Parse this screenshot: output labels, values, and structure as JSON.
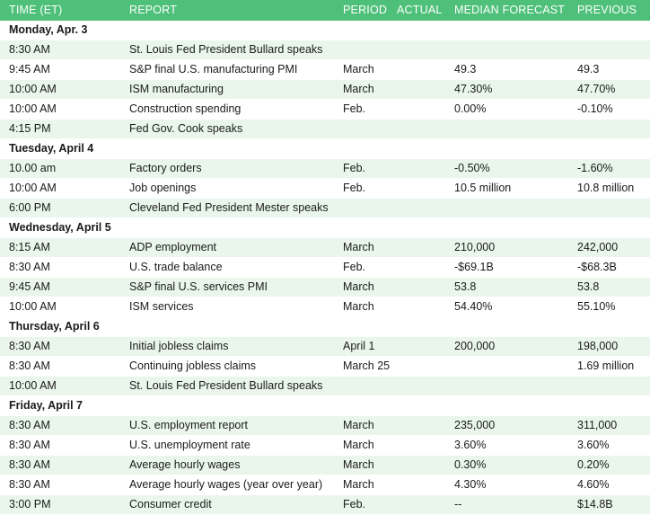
{
  "headers": {
    "time": "TIME (ET)",
    "report": "REPORT",
    "period": "PERIOD",
    "actual": "ACTUAL",
    "median_forecast": "MEDIAN FORECAST",
    "previous": "PREVIOUS"
  },
  "days": [
    {
      "label": "Monday, Apr. 3",
      "rows": [
        {
          "time": "8:30 AM",
          "report": "St. Louis Fed President Bullard speaks",
          "period": "",
          "actual": "",
          "forecast": "",
          "previous": ""
        },
        {
          "time": "9:45 AM",
          "report": "S&P final U.S. manufacturing PMI",
          "period": "March",
          "actual": "",
          "forecast": "49.3",
          "previous": "49.3"
        },
        {
          "time": "10:00 AM",
          "report": "ISM manufacturing",
          "period": "March",
          "actual": "",
          "forecast": "47.30%",
          "previous": "47.70%"
        },
        {
          "time": "10:00 AM",
          "report": "Construction spending",
          "period": "Feb.",
          "actual": "",
          "forecast": "0.00%",
          "previous": "-0.10%"
        },
        {
          "time": "4:15 PM",
          "report": "Fed Gov. Cook speaks",
          "period": "",
          "actual": "",
          "forecast": "",
          "previous": ""
        }
      ]
    },
    {
      "label": "Tuesday, April 4",
      "rows": [
        {
          "time": "10.00 am",
          "report": "Factory orders",
          "period": "Feb.",
          "actual": "",
          "forecast": "-0.50%",
          "previous": "-1.60%"
        },
        {
          "time": "10:00 AM",
          "report": "Job openings",
          "period": "Feb.",
          "actual": "",
          "forecast": "10.5 million",
          "previous": "10.8 million"
        },
        {
          "time": "6:00 PM",
          "report": "Cleveland Fed President Mester speaks",
          "period": "",
          "actual": "",
          "forecast": "",
          "previous": ""
        }
      ]
    },
    {
      "label": "Wednesday, April 5",
      "rows": [
        {
          "time": "8:15 AM",
          "report": "ADP employment",
          "period": "March",
          "actual": "",
          "forecast": "210,000",
          "previous": "242,000"
        },
        {
          "time": "8:30 AM",
          "report": "U.S. trade balance",
          "period": "Feb.",
          "actual": "",
          "forecast": "-$69.1B",
          "previous": "-$68.3B"
        },
        {
          "time": "9:45 AM",
          "report": "S&P final U.S. services PMI",
          "period": "March",
          "actual": "",
          "forecast": "53.8",
          "previous": "53.8"
        },
        {
          "time": "10:00 AM",
          "report": "ISM services",
          "period": "March",
          "actual": "",
          "forecast": "54.40%",
          "previous": "55.10%"
        }
      ]
    },
    {
      "label": "Thursday, April 6",
      "rows": [
        {
          "time": "8:30 AM",
          "report": "Initial jobless claims",
          "period": "April 1",
          "actual": "",
          "forecast": "200,000",
          "previous": "198,000"
        },
        {
          "time": "8:30 AM",
          "report": "Continuing jobless claims",
          "period": "March 25",
          "actual": "",
          "forecast": "",
          "previous": "1.69 million"
        },
        {
          "time": "10:00 AM",
          "report": "St. Louis Fed President Bullard speaks",
          "period": "",
          "actual": "",
          "forecast": "",
          "previous": ""
        }
      ]
    },
    {
      "label": "Friday, April 7",
      "rows": [
        {
          "time": "8:30 AM",
          "report": "U.S. employment report",
          "period": "March",
          "actual": "",
          "forecast": "235,000",
          "previous": "311,000"
        },
        {
          "time": "8:30 AM",
          "report": "U.S. unemployment rate",
          "period": "March",
          "actual": "",
          "forecast": "3.60%",
          "previous": "3.60%"
        },
        {
          "time": "8:30 AM",
          "report": "Average hourly wages",
          "period": "March",
          "actual": "",
          "forecast": "0.30%",
          "previous": "0.20%"
        },
        {
          "time": "8:30 AM",
          "report": "Average hourly wages (year over year)",
          "period": "March",
          "actual": "",
          "forecast": "4.30%",
          "previous": "4.60%"
        },
        {
          "time": "3:00 PM",
          "report": "Consumer credit",
          "period": "Feb.",
          "actual": "",
          "forecast": "--",
          "previous": "$14.8B"
        }
      ]
    }
  ],
  "colors": {
    "header_bg": "#4ec07a",
    "row_alt_bg": "#eaf6ec"
  }
}
